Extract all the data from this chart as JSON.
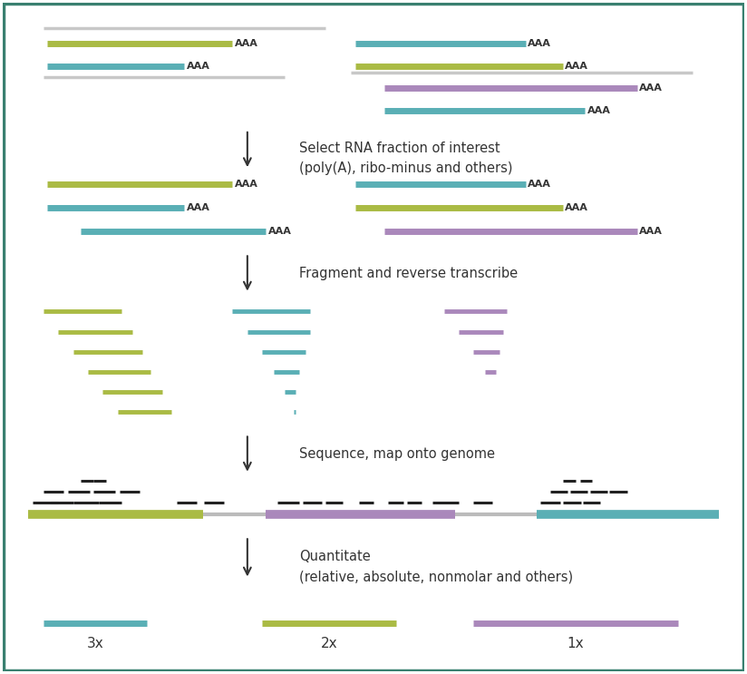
{
  "colors": {
    "teal": "#5AAFB5",
    "olive": "#AABB44",
    "purple": "#AA88BB",
    "gray": "#BBBBBB",
    "dark": "#333333"
  },
  "arrow_color": "#333333",
  "bg_color": "#FFFFFF",
  "border_color": "#3A8070",
  "step1_label": "Select RNA fraction of interest\n(poly(A), ribo-minus and others)",
  "step2_label": "Fragment and reverse transcribe",
  "step3_label": "Sequence, map onto genome",
  "step4_label": "Quantitate\n(relative, absolute, nonmolar and others)",
  "label_3x": "3x",
  "label_2x": "2x",
  "label_1x": "1x"
}
